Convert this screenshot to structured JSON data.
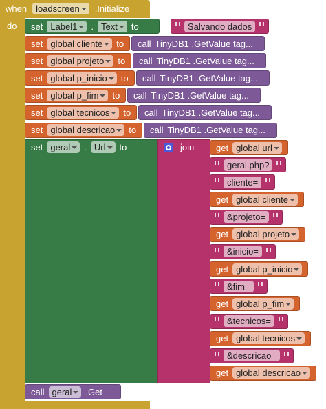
{
  "event_block": {
    "when": "when",
    "component": "loadscreen",
    "event": ".Initialize",
    "do": "do"
  },
  "label_set": {
    "set": "set",
    "component": "Label1",
    "dot": ".",
    "property": "Text",
    "to": "to",
    "value": "Salvando dados"
  },
  "global_sets": [
    {
      "set": "set",
      "variable": "global cliente",
      "to": "to",
      "call": "call",
      "method": "TinyDB1 .GetValue tag..."
    },
    {
      "set": "set",
      "variable": "global projeto",
      "to": "to",
      "call": "call",
      "method": "TinyDB1 .GetValue tag..."
    },
    {
      "set": "set",
      "variable": "global p_inicio",
      "to": "to",
      "call": "call",
      "method": "TinyDB1 .GetValue tag..."
    },
    {
      "set": "set",
      "variable": "global p_fim",
      "to": "to",
      "call": "call",
      "method": "TinyDB1 .GetValue tag..."
    },
    {
      "set": "set",
      "variable": "global tecnicos",
      "to": "to",
      "call": "call",
      "method": "TinyDB1 .GetValue tag..."
    },
    {
      "set": "set",
      "variable": "global descricao",
      "to": "to",
      "call": "call",
      "method": "TinyDB1 .GetValue tag..."
    }
  ],
  "url_set": {
    "set": "set",
    "component": "geral",
    "dot": ".",
    "property": "Url",
    "to": "to",
    "join": "join",
    "items": [
      {
        "get": "get",
        "variable": "global url"
      },
      {
        "text": "geral.php?"
      },
      {
        "text": "cliente="
      },
      {
        "get": "get",
        "variable": "global cliente"
      },
      {
        "text": "&projeto="
      },
      {
        "get": "get",
        "variable": "global projeto"
      },
      {
        "text": "&inicio="
      },
      {
        "get": "get",
        "variable": "global p_inicio"
      },
      {
        "text": "&fim="
      },
      {
        "get": "get",
        "variable": "global p_fim"
      },
      {
        "text": "&tecnicos="
      },
      {
        "get": "get",
        "variable": "global tecnicos"
      },
      {
        "text": "&descricao="
      },
      {
        "get": "get",
        "variable": "global descricao"
      }
    ]
  },
  "call_block": {
    "call": "call",
    "component": "geral",
    "method": ".Get"
  }
}
